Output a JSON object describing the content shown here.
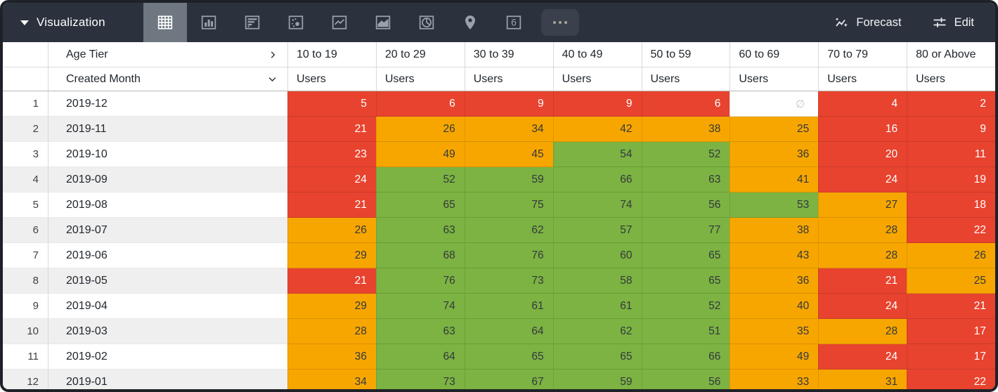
{
  "toolbar": {
    "title": "Visualization",
    "title_icon": "caret-down-icon",
    "viz_types": [
      {
        "id": "table",
        "icon": "table-icon",
        "selected": true
      },
      {
        "id": "column-chart",
        "icon": "column-chart-icon",
        "selected": false
      },
      {
        "id": "bar-chart",
        "icon": "bar-chart-icon",
        "selected": false
      },
      {
        "id": "scatter-plot",
        "icon": "scatter-plot-icon",
        "selected": false
      },
      {
        "id": "line-chart",
        "icon": "line-chart-icon",
        "selected": false
      },
      {
        "id": "area-chart",
        "icon": "area-chart-icon",
        "selected": false
      },
      {
        "id": "pie-chart",
        "icon": "pie-chart-icon",
        "selected": false
      },
      {
        "id": "map",
        "icon": "map-pin-icon",
        "selected": false
      },
      {
        "id": "single-value",
        "icon": "single-value-icon",
        "selected": false
      }
    ],
    "single_value_glyph": "6",
    "more_icon": "ellipsis-icon",
    "forecast": {
      "label": "Forecast",
      "icon": "sparkle-trend-icon"
    },
    "edit": {
      "label": "Edit",
      "icon": "sliders-icon"
    }
  },
  "pivot": {
    "column_dimension": "Age Tier",
    "column_dimension_icon": "chevron-right-icon",
    "row_dimension": "Created Month",
    "row_dimension_icon": "chevron-down-icon",
    "measure_label": "Users",
    "null_symbol": "∅",
    "columns": [
      "10 to 19",
      "20 to 29",
      "30 to 39",
      "40 to 49",
      "50 to 59",
      "60 to 69",
      "70 to 79",
      "80 or Above"
    ],
    "rows": [
      {
        "n": 1,
        "month": "2019-12",
        "cells": [
          {
            "v": "5",
            "c": "red"
          },
          {
            "v": "6",
            "c": "red"
          },
          {
            "v": "9",
            "c": "red"
          },
          {
            "v": "9",
            "c": "red"
          },
          {
            "v": "6",
            "c": "red"
          },
          {
            "v": null,
            "c": "null"
          },
          {
            "v": "4",
            "c": "red"
          },
          {
            "v": "2",
            "c": "red"
          }
        ]
      },
      {
        "n": 2,
        "month": "2019-11",
        "cells": [
          {
            "v": "21",
            "c": "red"
          },
          {
            "v": "26",
            "c": "orange"
          },
          {
            "v": "34",
            "c": "orange"
          },
          {
            "v": "42",
            "c": "orange"
          },
          {
            "v": "38",
            "c": "orange"
          },
          {
            "v": "25",
            "c": "orange"
          },
          {
            "v": "16",
            "c": "red"
          },
          {
            "v": "9",
            "c": "red"
          }
        ]
      },
      {
        "n": 3,
        "month": "2019-10",
        "cells": [
          {
            "v": "23",
            "c": "red"
          },
          {
            "v": "49",
            "c": "orange"
          },
          {
            "v": "45",
            "c": "orange"
          },
          {
            "v": "54",
            "c": "green"
          },
          {
            "v": "52",
            "c": "green"
          },
          {
            "v": "36",
            "c": "orange"
          },
          {
            "v": "20",
            "c": "red"
          },
          {
            "v": "11",
            "c": "red"
          }
        ]
      },
      {
        "n": 4,
        "month": "2019-09",
        "cells": [
          {
            "v": "24",
            "c": "red"
          },
          {
            "v": "52",
            "c": "green"
          },
          {
            "v": "59",
            "c": "green"
          },
          {
            "v": "66",
            "c": "green"
          },
          {
            "v": "63",
            "c": "green"
          },
          {
            "v": "41",
            "c": "orange"
          },
          {
            "v": "24",
            "c": "red"
          },
          {
            "v": "19",
            "c": "red"
          }
        ]
      },
      {
        "n": 5,
        "month": "2019-08",
        "cells": [
          {
            "v": "21",
            "c": "red"
          },
          {
            "v": "65",
            "c": "green"
          },
          {
            "v": "75",
            "c": "green"
          },
          {
            "v": "74",
            "c": "green"
          },
          {
            "v": "56",
            "c": "green"
          },
          {
            "v": "53",
            "c": "green"
          },
          {
            "v": "27",
            "c": "orange"
          },
          {
            "v": "18",
            "c": "red"
          }
        ]
      },
      {
        "n": 6,
        "month": "2019-07",
        "cells": [
          {
            "v": "26",
            "c": "orange"
          },
          {
            "v": "63",
            "c": "green"
          },
          {
            "v": "62",
            "c": "green"
          },
          {
            "v": "57",
            "c": "green"
          },
          {
            "v": "77",
            "c": "green"
          },
          {
            "v": "38",
            "c": "orange"
          },
          {
            "v": "28",
            "c": "orange"
          },
          {
            "v": "22",
            "c": "red"
          }
        ]
      },
      {
        "n": 7,
        "month": "2019-06",
        "cells": [
          {
            "v": "29",
            "c": "orange"
          },
          {
            "v": "68",
            "c": "green"
          },
          {
            "v": "76",
            "c": "green"
          },
          {
            "v": "60",
            "c": "green"
          },
          {
            "v": "65",
            "c": "green"
          },
          {
            "v": "43",
            "c": "orange"
          },
          {
            "v": "28",
            "c": "orange"
          },
          {
            "v": "26",
            "c": "orange"
          }
        ]
      },
      {
        "n": 8,
        "month": "2019-05",
        "cells": [
          {
            "v": "21",
            "c": "red"
          },
          {
            "v": "76",
            "c": "green"
          },
          {
            "v": "73",
            "c": "green"
          },
          {
            "v": "58",
            "c": "green"
          },
          {
            "v": "65",
            "c": "green"
          },
          {
            "v": "36",
            "c": "orange"
          },
          {
            "v": "21",
            "c": "red"
          },
          {
            "v": "25",
            "c": "orange"
          }
        ]
      },
      {
        "n": 9,
        "month": "2019-04",
        "cells": [
          {
            "v": "29",
            "c": "orange"
          },
          {
            "v": "74",
            "c": "green"
          },
          {
            "v": "61",
            "c": "green"
          },
          {
            "v": "61",
            "c": "green"
          },
          {
            "v": "52",
            "c": "green"
          },
          {
            "v": "40",
            "c": "orange"
          },
          {
            "v": "24",
            "c": "red"
          },
          {
            "v": "21",
            "c": "red"
          }
        ]
      },
      {
        "n": 10,
        "month": "2019-03",
        "cells": [
          {
            "v": "28",
            "c": "orange"
          },
          {
            "v": "63",
            "c": "green"
          },
          {
            "v": "64",
            "c": "green"
          },
          {
            "v": "62",
            "c": "green"
          },
          {
            "v": "51",
            "c": "green"
          },
          {
            "v": "35",
            "c": "orange"
          },
          {
            "v": "28",
            "c": "orange"
          },
          {
            "v": "17",
            "c": "red"
          }
        ]
      },
      {
        "n": 11,
        "month": "2019-02",
        "cells": [
          {
            "v": "36",
            "c": "orange"
          },
          {
            "v": "64",
            "c": "green"
          },
          {
            "v": "65",
            "c": "green"
          },
          {
            "v": "65",
            "c": "green"
          },
          {
            "v": "66",
            "c": "green"
          },
          {
            "v": "49",
            "c": "orange"
          },
          {
            "v": "24",
            "c": "red"
          },
          {
            "v": "17",
            "c": "red"
          }
        ]
      },
      {
        "n": 12,
        "month": "2019-01",
        "cells": [
          {
            "v": "34",
            "c": "orange"
          },
          {
            "v": "73",
            "c": "green"
          },
          {
            "v": "67",
            "c": "green"
          },
          {
            "v": "59",
            "c": "green"
          },
          {
            "v": "56",
            "c": "green"
          },
          {
            "v": "33",
            "c": "orange"
          },
          {
            "v": "31",
            "c": "orange"
          },
          {
            "v": "22",
            "c": "red"
          }
        ]
      }
    ]
  },
  "colors": {
    "red": "#e8432f",
    "orange": "#f7a600",
    "green": "#7cb342",
    "toolbar_bg": "#2b323e",
    "selected_viz_bg": "#6f7781",
    "row_stripe": "#efefef"
  }
}
